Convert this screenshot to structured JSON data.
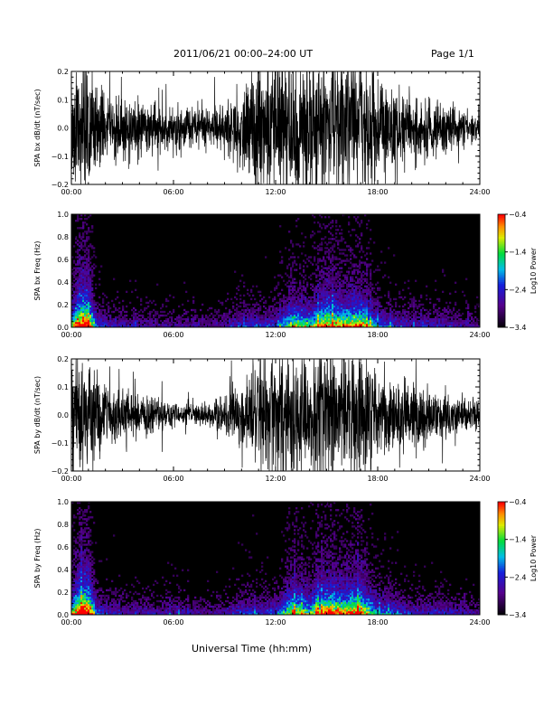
{
  "header": {
    "title": "2011/06/21  00:00–24:00 UT",
    "page": "Page 1/1"
  },
  "footer": {
    "xlabel": "Universal Time (hh:mm)"
  },
  "chart_data": [
    {
      "type": "line",
      "ylabel": "SPA bx dB/dt (nT/sec)",
      "x_ticks": [
        "00:00",
        "06:00",
        "12:00",
        "18:00",
        "24:00"
      ],
      "xlim": [
        0,
        24
      ],
      "ylim": [
        -0.2,
        0.2
      ],
      "y_ticks": [
        "0.2",
        "0.1",
        "0.0",
        "−0.1",
        "−0.2"
      ],
      "y_tick_values": [
        0.2,
        0.1,
        0.0,
        -0.1,
        -0.2
      ],
      "color": "#000000",
      "amplitude_envelope": {
        "hour": [
          0,
          0.5,
          1,
          1.5,
          2,
          3,
          4,
          5,
          6,
          7,
          8,
          9,
          10,
          11,
          12,
          13,
          14,
          15,
          16,
          17,
          18,
          19,
          20,
          21,
          22,
          23,
          24
        ],
        "amplitude": [
          0.2,
          0.2,
          0.2,
          0.15,
          0.09,
          0.1,
          0.08,
          0.06,
          0.06,
          0.07,
          0.05,
          0.06,
          0.12,
          0.2,
          0.2,
          0.18,
          0.2,
          0.2,
          0.2,
          0.2,
          0.14,
          0.12,
          0.1,
          0.09,
          0.07,
          0.05,
          0.04
        ]
      }
    },
    {
      "type": "heatmap",
      "ylabel": "SPA bx Freq (Hz)",
      "x_ticks": [
        "00:00",
        "06:00",
        "12:00",
        "18:00",
        "24:00"
      ],
      "xlim": [
        0,
        24
      ],
      "ylim": [
        0,
        1.0
      ],
      "y_ticks": [
        "1.0",
        "0.8",
        "0.6",
        "0.4",
        "0.2",
        "0.0"
      ],
      "y_tick_values": [
        1.0,
        0.8,
        0.6,
        0.4,
        0.2,
        0.0
      ],
      "colorbar": {
        "label": "Log10 Power",
        "min": -3.4,
        "max": -0.4,
        "ticks": [
          "−0.4",
          "−1.4",
          "−2.4",
          "−3.4"
        ],
        "tick_values": [
          -0.4,
          -1.4,
          -2.4,
          -3.4
        ]
      },
      "activity_envelope": {
        "hour": [
          0,
          0.5,
          1,
          1.5,
          2,
          3,
          4,
          5,
          6,
          7,
          8,
          9,
          10,
          11,
          12,
          13,
          14,
          15,
          16,
          17,
          18,
          19,
          20,
          21,
          22,
          23,
          24
        ],
        "level": [
          0.6,
          1.0,
          1.0,
          0.4,
          0.3,
          0.25,
          0.25,
          0.2,
          0.2,
          0.25,
          0.2,
          0.25,
          0.35,
          0.35,
          0.35,
          0.7,
          0.6,
          0.85,
          0.75,
          0.8,
          0.45,
          0.35,
          0.3,
          0.3,
          0.3,
          0.25,
          0.2
        ]
      }
    },
    {
      "type": "line",
      "ylabel": "SPA by dB/dt (nT/sec)",
      "x_ticks": [
        "00:00",
        "06:00",
        "12:00",
        "18:00",
        "24:00"
      ],
      "xlim": [
        0,
        24
      ],
      "ylim": [
        -0.2,
        0.2
      ],
      "y_ticks": [
        "0.2",
        "0.1",
        "0.0",
        "−0.1",
        "−0.2"
      ],
      "y_tick_values": [
        0.2,
        0.1,
        0.0,
        -0.1,
        -0.2
      ],
      "color": "#000000",
      "amplitude_envelope": {
        "hour": [
          0,
          0.5,
          1,
          1.5,
          2,
          3,
          4,
          5,
          6,
          7,
          8,
          9,
          10,
          11,
          12,
          13,
          14,
          15,
          16,
          17,
          18,
          19,
          20,
          21,
          22,
          23,
          24
        ],
        "amplitude": [
          0.2,
          0.2,
          0.18,
          0.14,
          0.09,
          0.08,
          0.06,
          0.05,
          0.03,
          0.03,
          0.03,
          0.05,
          0.1,
          0.18,
          0.2,
          0.16,
          0.2,
          0.2,
          0.2,
          0.2,
          0.13,
          0.1,
          0.09,
          0.08,
          0.06,
          0.05,
          0.05
        ]
      }
    },
    {
      "type": "heatmap",
      "ylabel": "SPA by Freq (Hz)",
      "x_ticks": [
        "00:00",
        "06:00",
        "12:00",
        "18:00",
        "24:00"
      ],
      "xlim": [
        0,
        24
      ],
      "ylim": [
        0,
        1.0
      ],
      "y_ticks": [
        "1.0",
        "0.8",
        "0.6",
        "0.4",
        "0.2",
        "0.0"
      ],
      "y_tick_values": [
        1.0,
        0.8,
        0.6,
        0.4,
        0.2,
        0.0
      ],
      "colorbar": {
        "label": "Log10 Power",
        "min": -3.4,
        "max": -0.4,
        "ticks": [
          "−0.4",
          "−1.4",
          "−2.4",
          "−3.4"
        ],
        "tick_values": [
          -0.4,
          -1.4,
          -2.4,
          -3.4
        ]
      },
      "activity_envelope": {
        "hour": [
          0,
          0.5,
          1,
          1.5,
          2,
          3,
          4,
          5,
          6,
          7,
          8,
          9,
          10,
          11,
          12,
          13,
          14,
          15,
          16,
          17,
          18,
          19,
          20,
          21,
          22,
          23,
          24
        ],
        "level": [
          0.6,
          1.0,
          1.0,
          0.4,
          0.3,
          0.25,
          0.25,
          0.25,
          0.3,
          0.25,
          0.2,
          0.25,
          0.35,
          0.35,
          0.35,
          0.75,
          0.6,
          0.85,
          0.8,
          0.85,
          0.45,
          0.4,
          0.3,
          0.3,
          0.3,
          0.25,
          0.2
        ]
      }
    }
  ]
}
